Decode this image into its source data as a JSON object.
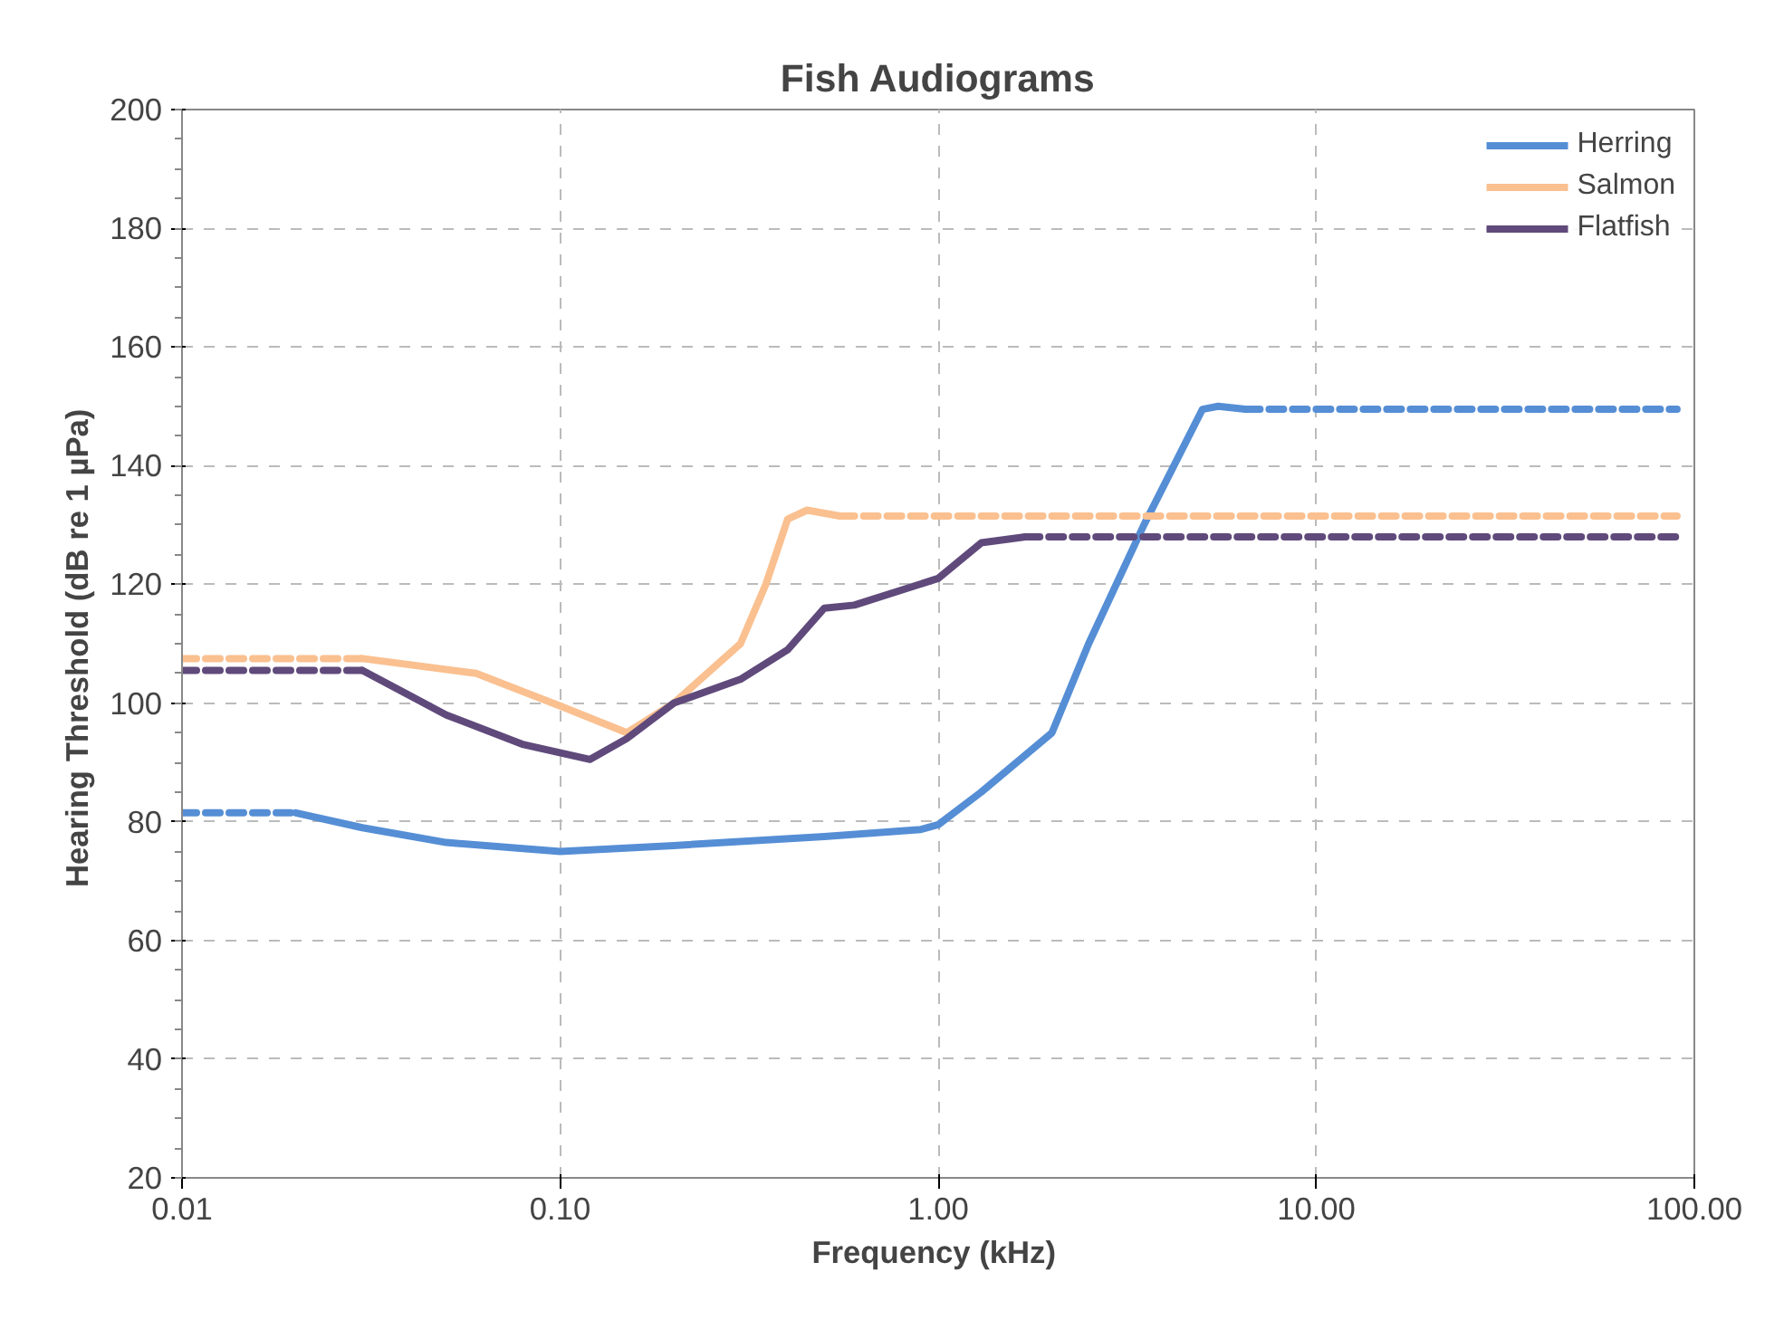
{
  "chart_data": {
    "type": "line",
    "title": "Fish Audiograms",
    "xlabel": "Frequency  (kHz)",
    "ylabel": "Hearing Threshold  (dB re 1 µPa)",
    "log": "x",
    "xlim": [
      0.01,
      100
    ],
    "ylim": [
      20,
      200
    ],
    "xticks": [
      {
        "value": 0.01,
        "label": "0.01"
      },
      {
        "value": 0.1,
        "label": "0.10"
      },
      {
        "value": 1,
        "label": "1.00"
      },
      {
        "value": 10,
        "label": "10.00"
      },
      {
        "value": 100,
        "label": "100.00"
      }
    ],
    "yticks": [
      20,
      40,
      60,
      80,
      100,
      120,
      140,
      160,
      180,
      200
    ],
    "grid": true,
    "legend": "top right",
    "series": [
      {
        "name": "Herring",
        "color": "#558ed5",
        "line_style": "solid",
        "x": [
          0.02,
          0.03,
          0.05,
          0.1,
          0.2,
          0.5,
          0.9,
          1.0,
          1.3,
          2,
          2.5,
          3.5,
          5,
          5.5,
          6.5
        ],
        "values": [
          81.5,
          79,
          76.5,
          75,
          76,
          77.5,
          78.7,
          79.5,
          85,
          95,
          110,
          130,
          149.5,
          150,
          149.5
        ]
      },
      {
        "name": "Salmon",
        "color": "#fac090",
        "line_style": "solid",
        "x": [
          0.03,
          0.06,
          0.1,
          0.15,
          0.2,
          0.3,
          0.35,
          0.4,
          0.45,
          0.55
        ],
        "values": [
          107.5,
          105,
          99.5,
          95,
          100,
          110,
          120,
          131,
          132.5,
          131.5
        ]
      },
      {
        "name": "Flatfish",
        "color": "#604a7b",
        "line_style": "solid",
        "x": [
          0.03,
          0.05,
          0.08,
          0.12,
          0.15,
          0.2,
          0.3,
          0.4,
          0.5,
          0.6,
          1.0,
          1.3,
          1.7
        ],
        "values": [
          105.5,
          98,
          93,
          90.5,
          94,
          100,
          104,
          109,
          116,
          116.5,
          121,
          127,
          128
        ]
      },
      {
        "color": "#558ed5",
        "line_style": "dashed",
        "x": [
          0.01,
          0.02
        ],
        "values": [
          81.5,
          81.5
        ]
      },
      {
        "color": "#558ed5",
        "line_style": "dashed",
        "x": [
          6.5,
          90
        ],
        "values": [
          149.5,
          149.5
        ]
      },
      {
        "color": "#fac090",
        "line_style": "dashed",
        "x": [
          0.01,
          0.03
        ],
        "values": [
          107.5,
          107.5
        ]
      },
      {
        "color": "#fac090",
        "line_style": "dashed",
        "x": [
          0.55,
          90
        ],
        "values": [
          131.5,
          131.5
        ]
      },
      {
        "color": "#604a7b",
        "line_style": "dashed",
        "x": [
          0.01,
          0.03
        ],
        "values": [
          105.5,
          105.5
        ]
      },
      {
        "color": "#604a7b",
        "line_style": "dashed",
        "x": [
          1.7,
          90
        ],
        "values": [
          128,
          128
        ]
      }
    ]
  }
}
